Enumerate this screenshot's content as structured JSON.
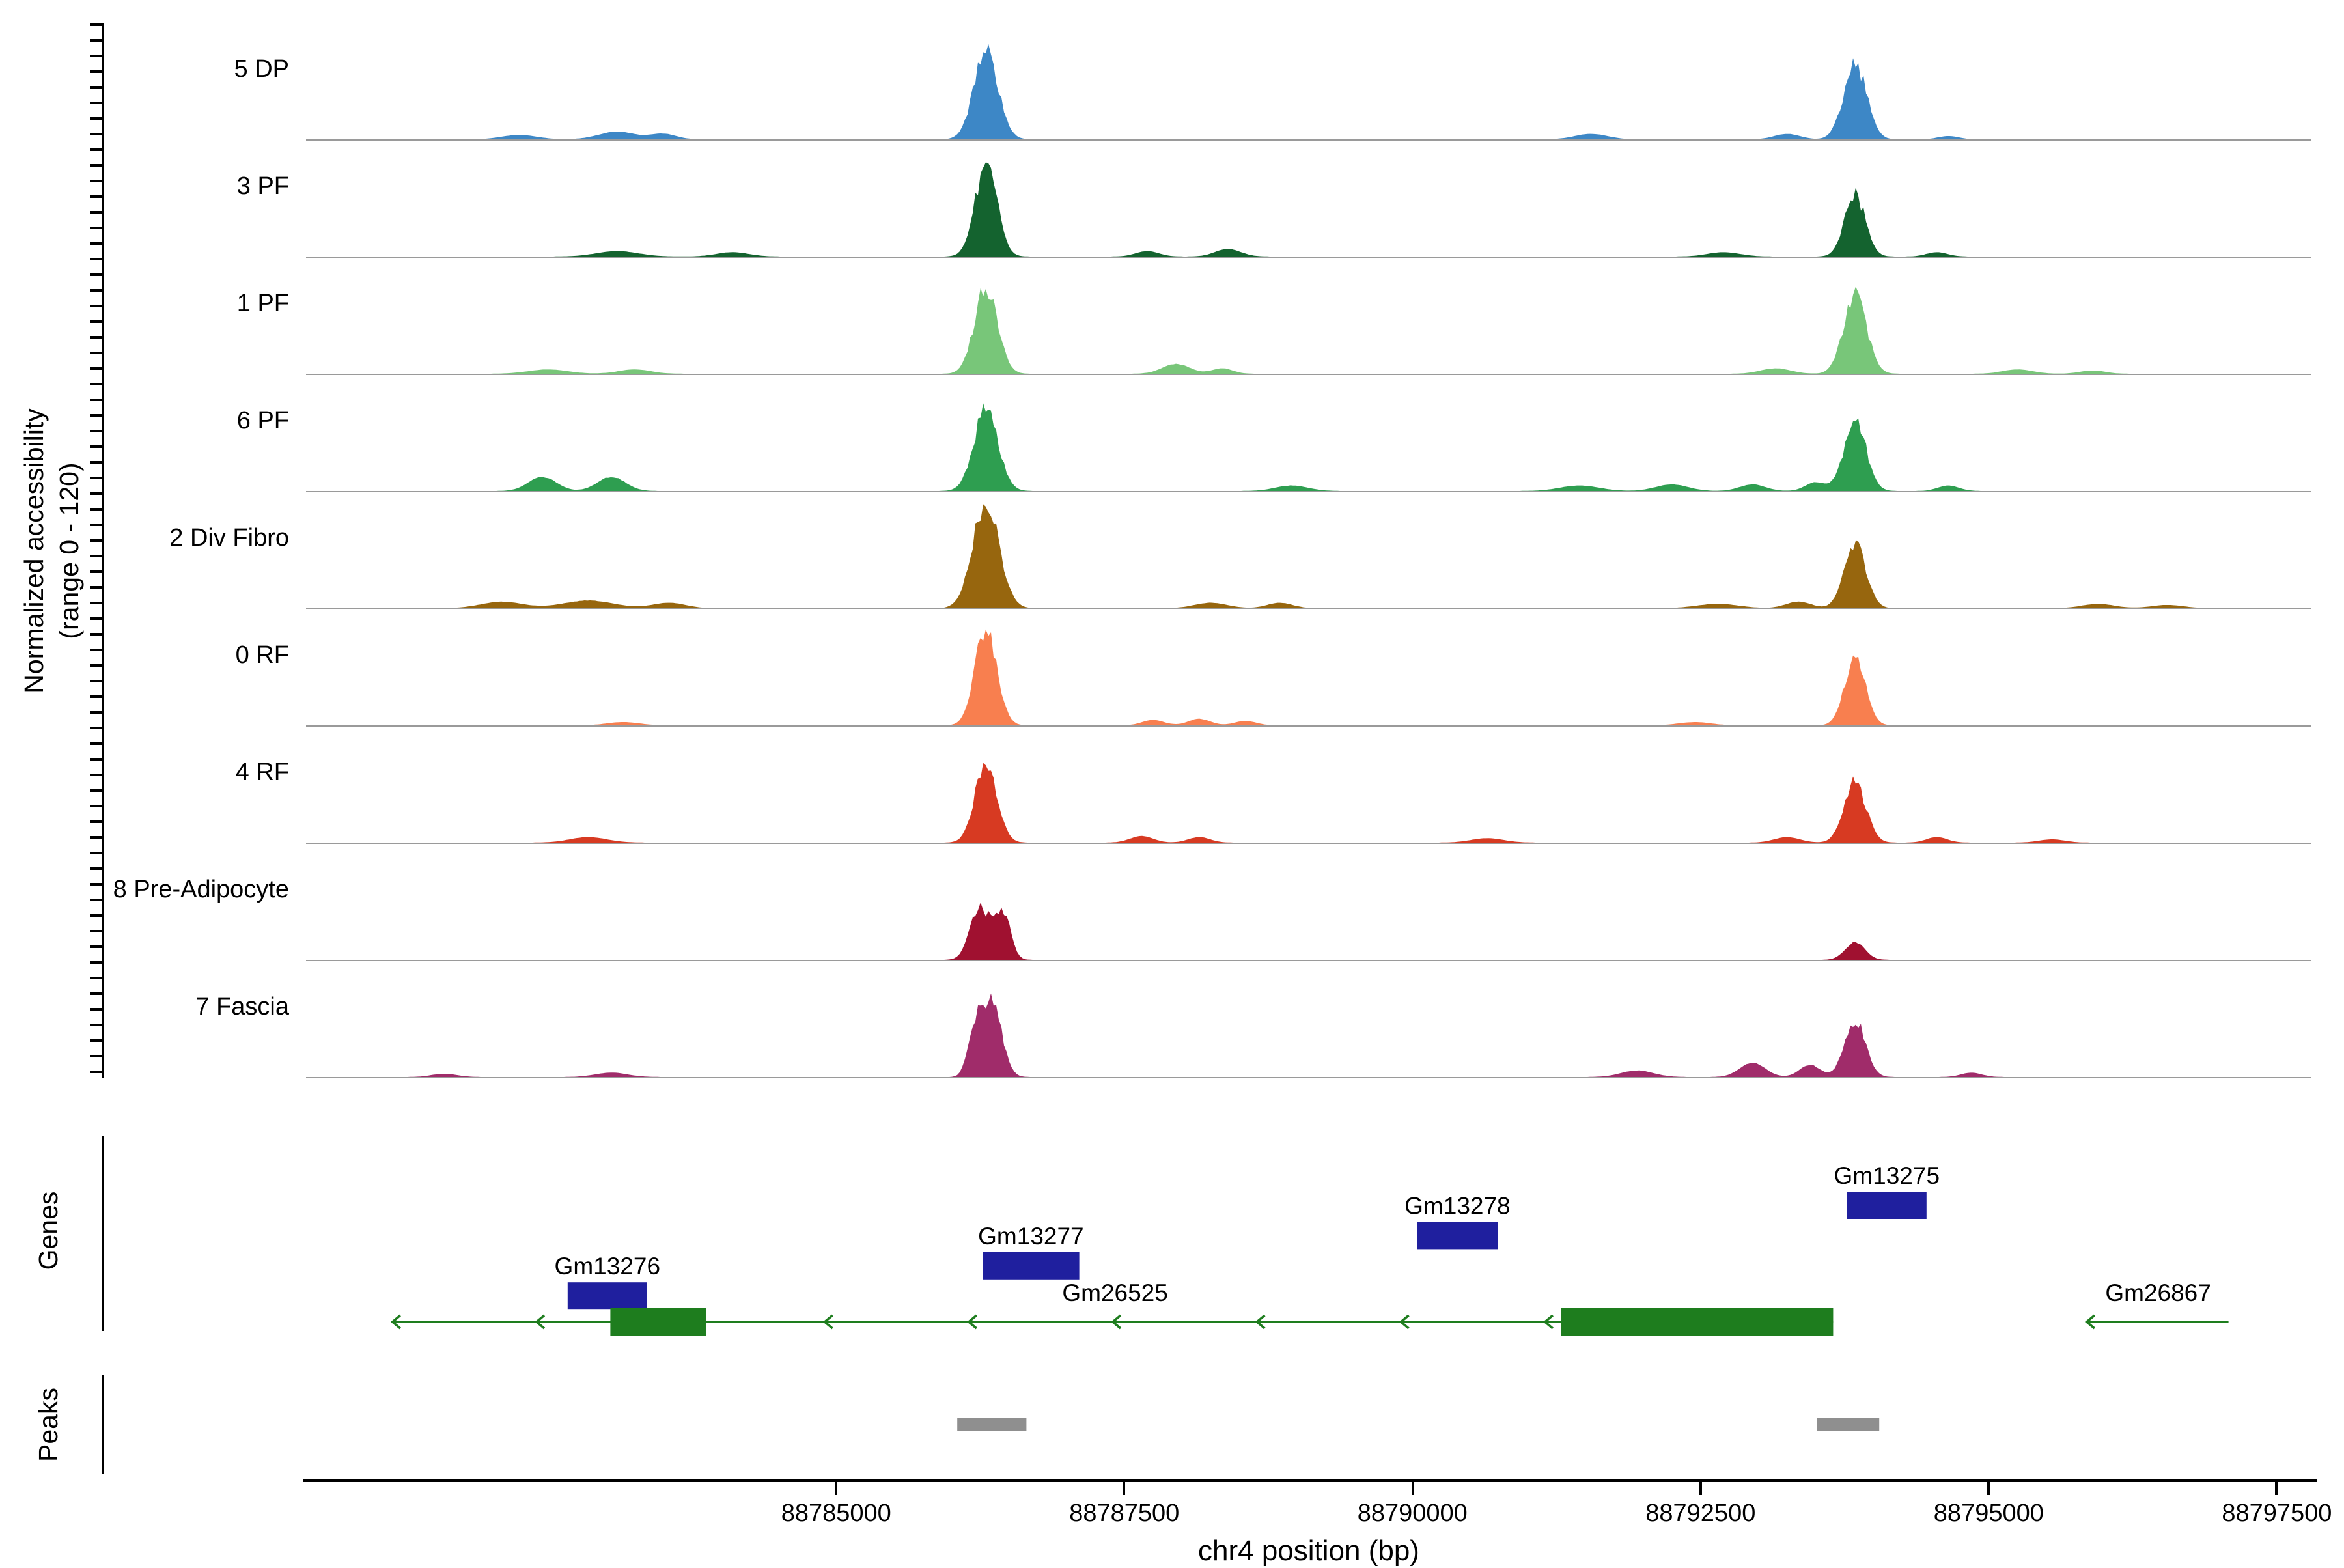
{
  "chart_data": {
    "type": "area",
    "title": "",
    "x_axis": {
      "label": "chr4 position (bp)",
      "min": 88780400,
      "max": 88797800,
      "ticks": [
        88785000,
        88787500,
        88790000,
        88792500,
        88795000,
        88797500
      ]
    },
    "y_axis": {
      "label_line1": "Normalized accessibility",
      "label_line2": "(range 0 - 120)",
      "range": [
        0,
        120
      ]
    },
    "tracks": [
      {
        "label": "5 DP",
        "color": "#3d87c6",
        "peaks": [
          [
            88782250,
            0.04,
            150
          ],
          [
            88783100,
            0.07,
            160
          ],
          [
            88783500,
            0.05,
            110
          ],
          [
            88786300,
            0.8,
            105
          ],
          [
            88791550,
            0.05,
            140
          ],
          [
            88793250,
            0.05,
            110
          ],
          [
            88793840,
            0.68,
            100
          ],
          [
            88794650,
            0.03,
            90
          ]
        ]
      },
      {
        "label": "3 PF",
        "color": "#14632f",
        "peaks": [
          [
            88783100,
            0.05,
            180
          ],
          [
            88784100,
            0.04,
            140
          ],
          [
            88786300,
            0.84,
            95
          ],
          [
            88787700,
            0.05,
            100
          ],
          [
            88788400,
            0.07,
            110
          ],
          [
            88792700,
            0.04,
            140
          ],
          [
            88793840,
            0.56,
            90
          ],
          [
            88794550,
            0.04,
            90
          ]
        ]
      },
      {
        "label": "1 PF",
        "color": "#78c679",
        "peaks": [
          [
            88782500,
            0.04,
            170
          ],
          [
            88783250,
            0.04,
            140
          ],
          [
            88786300,
            0.78,
            100
          ],
          [
            88787950,
            0.09,
            120
          ],
          [
            88788350,
            0.05,
            90
          ],
          [
            88793150,
            0.05,
            130
          ],
          [
            88793840,
            0.72,
            100
          ],
          [
            88795250,
            0.04,
            130
          ],
          [
            88795900,
            0.03,
            110
          ]
        ]
      },
      {
        "label": "6 PF",
        "color": "#2e9e50",
        "peaks": [
          [
            88782450,
            0.13,
            120
          ],
          [
            88783050,
            0.13,
            120
          ],
          [
            88786300,
            0.74,
            105
          ],
          [
            88788950,
            0.05,
            140
          ],
          [
            88791450,
            0.05,
            170
          ],
          [
            88792250,
            0.06,
            140
          ],
          [
            88792950,
            0.06,
            110
          ],
          [
            88793500,
            0.08,
            90
          ],
          [
            88793840,
            0.66,
            95
          ],
          [
            88794650,
            0.05,
            90
          ]
        ]
      },
      {
        "label": "2 Div Fibro",
        "color": "#97660e",
        "peaks": [
          [
            88782100,
            0.06,
            180
          ],
          [
            88782850,
            0.07,
            220
          ],
          [
            88783550,
            0.05,
            140
          ],
          [
            88786300,
            0.97,
            115
          ],
          [
            88788250,
            0.05,
            140
          ],
          [
            88788850,
            0.05,
            110
          ],
          [
            88792650,
            0.04,
            180
          ],
          [
            88793350,
            0.06,
            110
          ],
          [
            88793840,
            0.58,
            95
          ],
          [
            88795950,
            0.04,
            140
          ],
          [
            88796550,
            0.03,
            140
          ]
        ]
      },
      {
        "label": "0 RF",
        "color": "#f87f4f",
        "peaks": [
          [
            88783150,
            0.03,
            140
          ],
          [
            88786300,
            0.88,
            95
          ],
          [
            88787750,
            0.05,
            95
          ],
          [
            88788150,
            0.06,
            95
          ],
          [
            88788550,
            0.04,
            95
          ],
          [
            88792450,
            0.03,
            140
          ],
          [
            88793840,
            0.62,
            90
          ]
        ]
      },
      {
        "label": "4 RF",
        "color": "#d73a22",
        "peaks": [
          [
            88782850,
            0.05,
            160
          ],
          [
            88786300,
            0.72,
            95
          ],
          [
            88787650,
            0.06,
            100
          ],
          [
            88788150,
            0.05,
            95
          ],
          [
            88790650,
            0.04,
            140
          ],
          [
            88793250,
            0.05,
            110
          ],
          [
            88793840,
            0.56,
            95
          ],
          [
            88794550,
            0.05,
            90
          ],
          [
            88795550,
            0.03,
            110
          ]
        ]
      },
      {
        "label": "8 Pre-Adipocyte",
        "color": "#a01130",
        "peaks": [
          [
            88786250,
            0.5,
            85
          ],
          [
            88786450,
            0.4,
            65
          ],
          [
            88793840,
            0.16,
            85
          ]
        ]
      },
      {
        "label": "7 Fascia",
        "color": "#a02c6a",
        "peaks": [
          [
            88781600,
            0.03,
            110
          ],
          [
            88783050,
            0.04,
            140
          ],
          [
            88786200,
            0.4,
            60
          ],
          [
            88786350,
            0.7,
            85
          ],
          [
            88791950,
            0.06,
            140
          ],
          [
            88792950,
            0.13,
            110
          ],
          [
            88793450,
            0.11,
            90
          ],
          [
            88793840,
            0.52,
            90
          ],
          [
            88794850,
            0.04,
            90
          ]
        ]
      }
    ],
    "genes": {
      "label": "Genes",
      "color_blue": "#1f1f9e",
      "color_green": "#1e7d1e",
      "blue_genes": [
        {
          "name": "Gm13275",
          "start": 88793770,
          "end": 88794460,
          "row": 0
        },
        {
          "name": "Gm13278",
          "start": 88790040,
          "end": 88790740,
          "row": 1
        },
        {
          "name": "Gm13277",
          "start": 88786270,
          "end": 88787110,
          "row": 2
        },
        {
          "name": "Gm13276",
          "start": 88782670,
          "end": 88783360,
          "row": 3
        }
      ],
      "green_genes": [
        {
          "name": "Gm26525",
          "start": 88781150,
          "end": 88793650,
          "strand": "-",
          "exons": [
            [
              88783040,
              88783870
            ],
            [
              88791290,
              88793650
            ]
          ],
          "label_bp": 88787420
        },
        {
          "name": "Gm26867",
          "start": 88795850,
          "end": 88797080,
          "strand": "-",
          "exons": [],
          "label_bp": 88796470
        }
      ]
    },
    "peaks_track": {
      "label": "Peaks",
      "color": "#8f8f8f",
      "intervals": [
        [
          88786050,
          88786650
        ],
        [
          88793510,
          88794050
        ]
      ]
    }
  }
}
